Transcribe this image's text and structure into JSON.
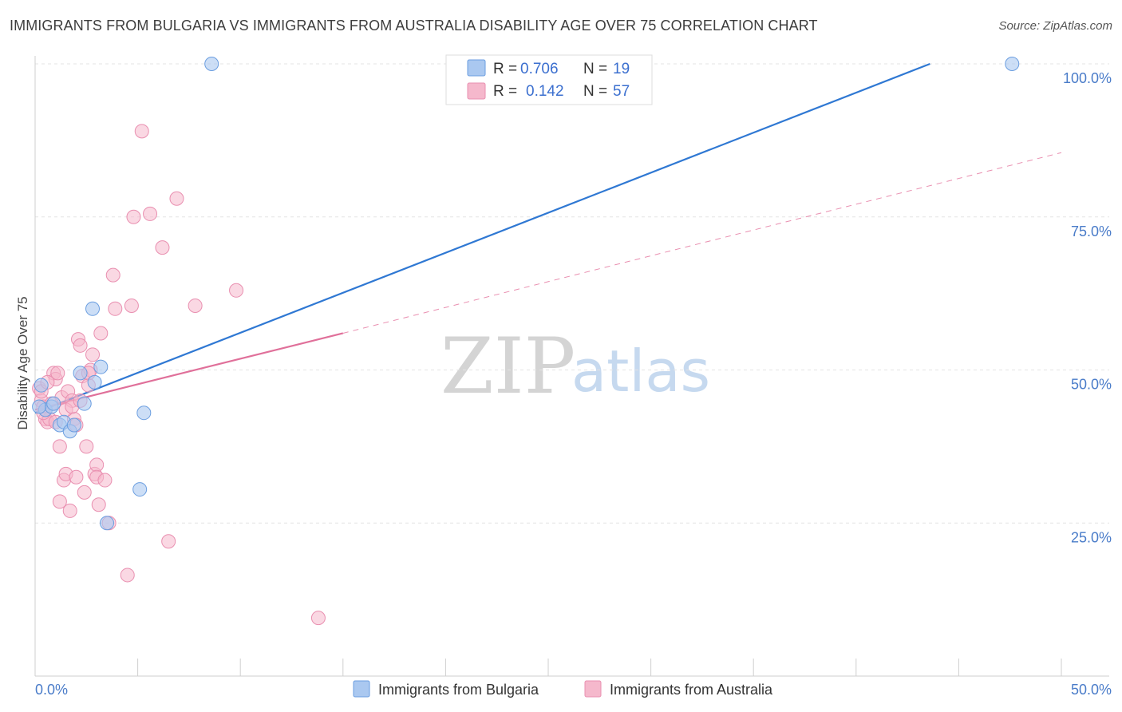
{
  "header": {
    "title": "IMMIGRANTS FROM BULGARIA VS IMMIGRANTS FROM AUSTRALIA DISABILITY AGE OVER 75 CORRELATION CHART",
    "source": "Source: ZipAtlas.com"
  },
  "watermark": {
    "zip": "ZIP",
    "atlas": "atlas"
  },
  "colors": {
    "bulgaria_fill": "#aac8f0",
    "bulgaria_stroke": "#6b9ee0",
    "bulgaria_line": "#2f78d3",
    "australia_fill": "#f5b8cc",
    "australia_stroke": "#e98fb0",
    "australia_line": "#e0709a",
    "grid": "#e3e3e3",
    "tick_text": "#4a7cc9"
  },
  "chart_data": {
    "type": "scatter",
    "title": "IMMIGRANTS FROM BULGARIA VS IMMIGRANTS FROM AUSTRALIA DISABILITY AGE OVER 75 CORRELATION CHART",
    "xlabel": "",
    "ylabel": "Disability Age Over 75",
    "xlim": [
      0,
      50
    ],
    "ylim": [
      0,
      100
    ],
    "x_tick_labels": [
      "0.0%",
      "50.0%"
    ],
    "y_ticks": [
      25,
      50,
      75,
      100
    ],
    "y_tick_labels": [
      "25.0%",
      "50.0%",
      "75.0%",
      "100.0%"
    ],
    "grid": true,
    "legend": {
      "placement": "top-center",
      "rows": [
        {
          "r_label": "R =",
          "r_value": "0.706",
          "n_label": "N =",
          "n_value": "19"
        },
        {
          "r_label": "R =",
          "r_value": "0.142",
          "n_label": "N =",
          "n_value": "57"
        }
      ]
    },
    "series": [
      {
        "name": "Immigrants from Bulgaria",
        "points": [
          [
            0.3,
            47.5
          ],
          [
            0.5,
            43.5
          ],
          [
            0.8,
            44.0
          ],
          [
            0.9,
            44.5
          ],
          [
            1.2,
            41.0
          ],
          [
            1.4,
            41.5
          ],
          [
            1.7,
            40.0
          ],
          [
            1.9,
            41.0
          ],
          [
            2.2,
            49.5
          ],
          [
            2.4,
            44.5
          ],
          [
            2.9,
            48.0
          ],
          [
            2.8,
            60.0
          ],
          [
            3.2,
            50.5
          ],
          [
            3.5,
            25.0
          ],
          [
            5.1,
            30.5
          ],
          [
            5.3,
            43.0
          ],
          [
            8.6,
            100.0
          ],
          [
            47.6,
            100.0
          ],
          [
            0.2,
            44.0
          ]
        ],
        "trend": {
          "x": [
            0,
            43.6
          ],
          "y": [
            43.0,
            100.0
          ],
          "style": "solid"
        }
      },
      {
        "name": "Immigrants from Australia",
        "points": [
          [
            0.2,
            47.0
          ],
          [
            0.3,
            45.0
          ],
          [
            0.4,
            44.0
          ],
          [
            0.5,
            42.0
          ],
          [
            0.6,
            41.5
          ],
          [
            0.7,
            42.0
          ],
          [
            0.9,
            49.5
          ],
          [
            1.0,
            48.5
          ],
          [
            1.1,
            49.5
          ],
          [
            1.2,
            28.5
          ],
          [
            1.2,
            37.5
          ],
          [
            1.3,
            45.5
          ],
          [
            1.4,
            32.0
          ],
          [
            1.5,
            33.0
          ],
          [
            1.6,
            46.5
          ],
          [
            1.7,
            27.0
          ],
          [
            1.8,
            45.0
          ],
          [
            1.9,
            42.0
          ],
          [
            2.0,
            32.5
          ],
          [
            2.1,
            55.0
          ],
          [
            2.2,
            54.0
          ],
          [
            2.3,
            49.0
          ],
          [
            2.4,
            30.0
          ],
          [
            2.5,
            37.5
          ],
          [
            2.6,
            47.5
          ],
          [
            2.7,
            50.0
          ],
          [
            2.8,
            52.5
          ],
          [
            2.9,
            33.0
          ],
          [
            3.0,
            34.5
          ],
          [
            3.0,
            32.5
          ],
          [
            3.1,
            28.0
          ],
          [
            3.2,
            56.0
          ],
          [
            3.4,
            32.0
          ],
          [
            3.6,
            25.0
          ],
          [
            3.8,
            65.5
          ],
          [
            3.9,
            60.0
          ],
          [
            4.5,
            16.5
          ],
          [
            4.7,
            60.5
          ],
          [
            4.8,
            75.0
          ],
          [
            5.2,
            89.0
          ],
          [
            5.6,
            75.5
          ],
          [
            6.2,
            70.0
          ],
          [
            6.5,
            22.0
          ],
          [
            6.9,
            78.0
          ],
          [
            7.8,
            60.5
          ],
          [
            9.8,
            63.0
          ],
          [
            13.8,
            9.5
          ],
          [
            0.8,
            44.5
          ],
          [
            1.5,
            43.5
          ],
          [
            2.0,
            41.0
          ],
          [
            0.4,
            43.0
          ],
          [
            1.8,
            44.0
          ],
          [
            2.6,
            49.5
          ],
          [
            0.3,
            46.5
          ],
          [
            1.0,
            41.5
          ],
          [
            0.6,
            48.0
          ],
          [
            2.2,
            45.0
          ]
        ],
        "trend_solid": {
          "x": [
            0,
            15.0
          ],
          "y": [
            43.5,
            56.0
          ],
          "style": "solid"
        },
        "trend_dashed": {
          "x": [
            15.0,
            50.0
          ],
          "y": [
            56.0,
            85.5
          ],
          "style": "dashed"
        }
      }
    ]
  }
}
